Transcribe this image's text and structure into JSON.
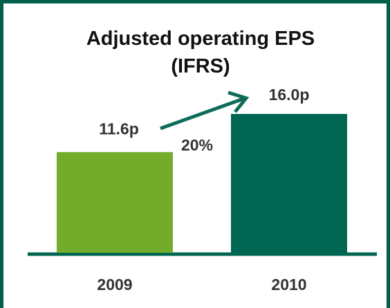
{
  "chart_data": {
    "type": "bar",
    "title": "Adjusted operating EPS (IFRS)",
    "categories": [
      "2009",
      "2010"
    ],
    "values": [
      11.6,
      16.0
    ],
    "value_labels": [
      "11.6p",
      "16.0p"
    ],
    "colors": [
      "#73ab2b",
      "#006652"
    ],
    "annotation": "20%"
  }
}
